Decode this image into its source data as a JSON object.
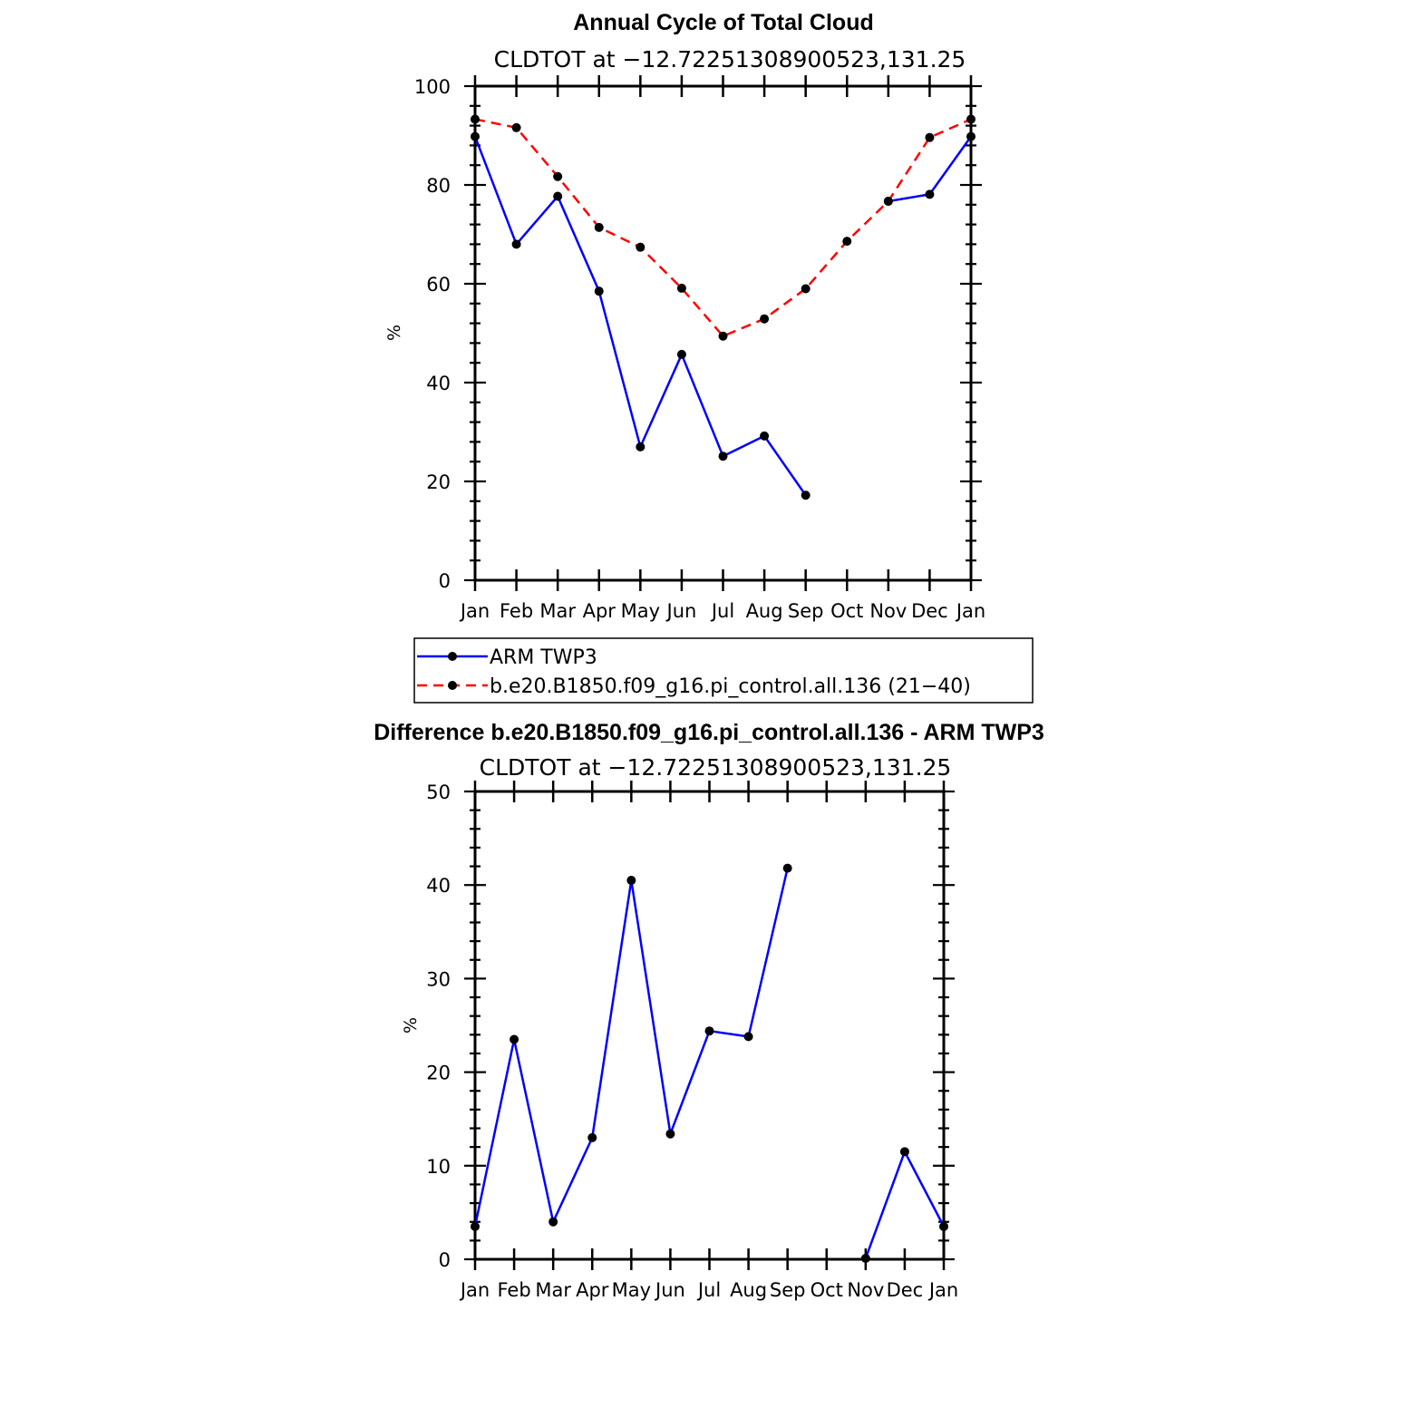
{
  "chart_data": [
    {
      "type": "line",
      "title": "Annual Cycle of Total Cloud",
      "subtitle": "CLDTOT at −12.72251308900523,131.25",
      "xlabel": "",
      "ylabel": "%",
      "categories": [
        "Jan",
        "Feb",
        "Mar",
        "Apr",
        "May",
        "Jun",
        "Jul",
        "Aug",
        "Sep",
        "Oct",
        "Nov",
        "Dec",
        "Jan"
      ],
      "ylim": [
        0,
        100
      ],
      "yticks": [
        0,
        20,
        40,
        60,
        80,
        100
      ],
      "grid": false,
      "series": [
        {
          "name": "ARM TWP3",
          "color": "#0000ff",
          "dash": "solid",
          "values": [
            89.8,
            68.0,
            77.7,
            58.5,
            27.0,
            45.7,
            25.1,
            29.2,
            17.2,
            null,
            76.7,
            78.1,
            89.8
          ]
        },
        {
          "name": "b.e20.B1850.f09_g16.pi_control.all.136 (21−40)",
          "color": "#ff0000",
          "dash": "dashed",
          "values": [
            93.3,
            91.6,
            81.7,
            71.4,
            67.4,
            59.1,
            49.4,
            52.9,
            59.0,
            68.6,
            76.7,
            89.6,
            93.3
          ]
        }
      ]
    },
    {
      "type": "line",
      "title": "Difference b.e20.B1850.f09_g16.pi_control.all.136 - ARM TWP3",
      "subtitle": "CLDTOT at −12.72251308900523,131.25",
      "xlabel": "",
      "ylabel": "%",
      "categories": [
        "Jan",
        "Feb",
        "Mar",
        "Apr",
        "May",
        "Jun",
        "Jul",
        "Aug",
        "Sep",
        "Oct",
        "Nov",
        "Dec",
        "Jan"
      ],
      "ylim": [
        0,
        50
      ],
      "yticks": [
        0,
        10,
        20,
        30,
        40,
        50
      ],
      "grid": false,
      "series": [
        {
          "color": "#0000ff",
          "dash": "solid",
          "values": [
            3.5,
            23.5,
            4.0,
            13.0,
            40.5,
            13.4,
            24.4,
            23.8,
            41.8,
            null,
            0.1,
            11.5,
            3.5
          ]
        }
      ]
    }
  ]
}
